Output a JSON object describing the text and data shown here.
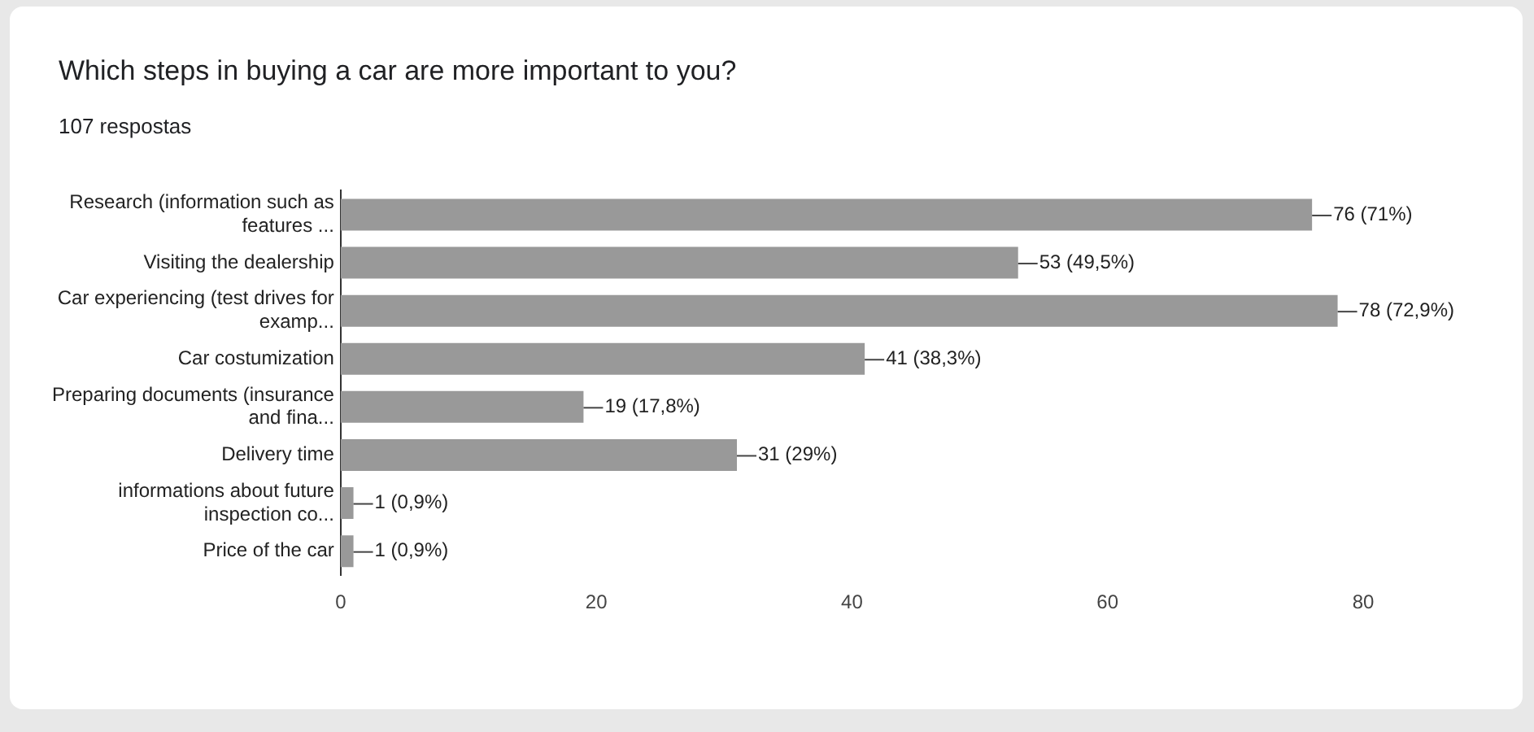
{
  "chart_data": {
    "type": "bar",
    "orientation": "horizontal",
    "title": "Which steps in buying a car are more important to you?",
    "subtitle": "107 respostas",
    "categories": [
      "Research (information such as\nfeatures ...",
      "Visiting the dealership",
      "Car experiencing (test drives for\nexamp...",
      "Car costumization",
      "Preparing documents (insurance\nand fina...",
      "Delivery time",
      "informations about future\ninspection co...",
      "Price of the car"
    ],
    "values": [
      76,
      53,
      78,
      41,
      19,
      31,
      1,
      1
    ],
    "value_labels": [
      "76 (71%)",
      "53 (49,5%)",
      "78 (72,9%)",
      "41 (38,3%)",
      "19 (17,8%)",
      "31 (29%)",
      "1 (0,9%)",
      "1 (0,9%)"
    ],
    "color": "#999999",
    "xlim": [
      0,
      80
    ],
    "xticks": [
      0,
      20,
      40,
      60,
      80
    ],
    "grid": false,
    "legend": false
  }
}
